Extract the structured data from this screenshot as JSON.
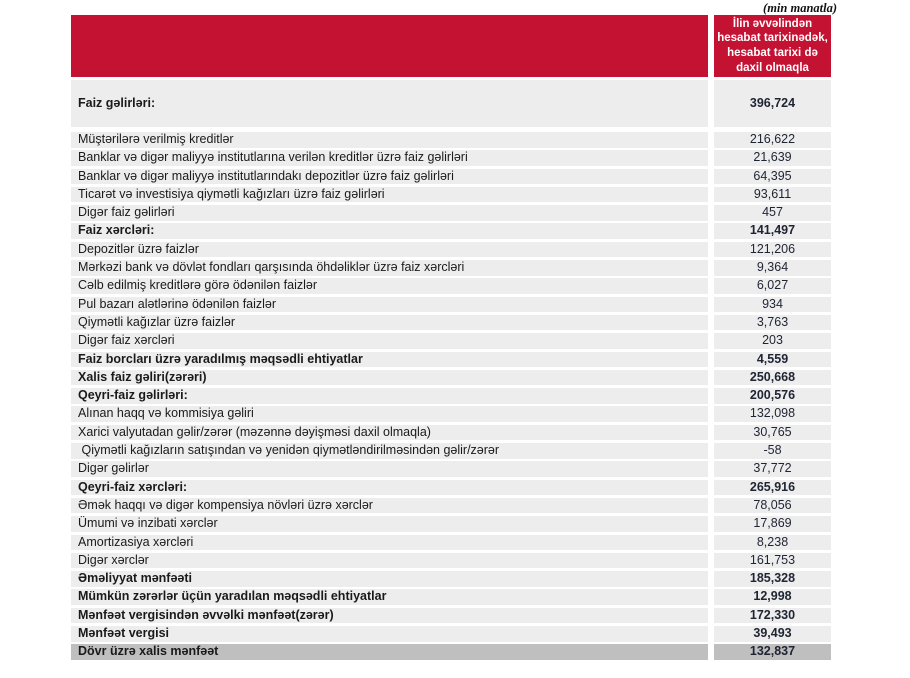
{
  "units_note": "(min manatla)",
  "table": {
    "value_column_header": "İlin əvvəlindən hesabat tarixinədək, hesabat tarixi də daxil olmaqla",
    "colors": {
      "header_red": "#C41233",
      "header_text": "#FFFFFF",
      "row_gray": "#EDEDED",
      "total_row_gray": "#BFBFBF"
    },
    "rows": [
      {
        "label": "Faiz gəlirləri:",
        "value": "396,724",
        "style": "bold tall"
      },
      {
        "label": "Müştərilərə verilmiş kreditlər",
        "value": "216,622",
        "style": ""
      },
      {
        "label": "Banklar və digər maliyyə institutlarına verilən kreditlər üzrə faiz gəlirləri",
        "value": "21,639",
        "style": ""
      },
      {
        "label": "Banklar və digər maliyyə institutlarındakı depozitlər üzrə faiz gəlirləri",
        "value": "64,395",
        "style": ""
      },
      {
        "label": "Ticarət və investisiya qiymətli kağızları üzrə faiz gəlirləri",
        "value": "93,611",
        "style": ""
      },
      {
        "label": "Digər faiz gəlirləri",
        "value": "457",
        "style": ""
      },
      {
        "label": "Faiz xərcləri:",
        "value": "141,497",
        "style": "bold"
      },
      {
        "label": "Depozitlər üzrə faizlər",
        "value": "121,206",
        "style": ""
      },
      {
        "label": "Mərkəzi bank və dövlət fondları qarşısında öhdəliklər üzrə faiz xərcləri",
        "value": "9,364",
        "style": ""
      },
      {
        "label": "Cəlb edilmiş kreditlərə görə ödənilən faizlər",
        "value": "6,027",
        "style": ""
      },
      {
        "label": "Pul bazarı alətlərinə ödənilən faizlər",
        "value": "934",
        "style": ""
      },
      {
        "label": "Qiymətli kağızlar üzrə faizlər",
        "value": "3,763",
        "style": ""
      },
      {
        "label": "Digər faiz xərcləri",
        "value": "203",
        "style": ""
      },
      {
        "label": "Faiz borcları üzrə yaradılmış məqsədli ehtiyatlar",
        "value": "4,559",
        "style": "bold"
      },
      {
        "label": "Xalis faiz gəliri(zərəri)",
        "value": "250,668",
        "style": "bold"
      },
      {
        "label": "Qeyri-faiz gəlirləri:",
        "value": "200,576",
        "style": "bold"
      },
      {
        "label": "Alınan haqq və kommisiya gəliri",
        "value": "132,098",
        "style": ""
      },
      {
        "label": "Xarici valyutadan gəlir/zərər (məzənnə dəyişməsi daxil olmaqla)",
        "value": "30,765",
        "style": ""
      },
      {
        "label": " Qiymətli kağızların satışından və yenidən qiymətləndirilməsindən gəlir/zərər",
        "value": "-58",
        "style": ""
      },
      {
        "label": "Digər gəlirlər",
        "value": "37,772",
        "style": ""
      },
      {
        "label": "Qeyri-faiz xərcləri:",
        "value": "265,916",
        "style": "bold"
      },
      {
        "label": "Əmək haqqı və digər kompensiya növləri üzrə xərclər",
        "value": "78,056",
        "style": ""
      },
      {
        "label": "Ümumi və inzibati xərclər",
        "value": "17,869",
        "style": ""
      },
      {
        "label": "Amortizasiya xərcləri",
        "value": "8,238",
        "style": ""
      },
      {
        "label": "Digər xərclər",
        "value": "161,753",
        "style": ""
      },
      {
        "label": "Əməliyyat mənfəəti",
        "value": "185,328",
        "style": "bold"
      },
      {
        "label": "Mümkün zərərlər üçün yaradılan məqsədli ehtiyatlar",
        "value": "12,998",
        "style": "bold"
      },
      {
        "label": "Mənfəət vergisindən əvvəlki mənfəət(zərər)",
        "value": "172,330",
        "style": "bold"
      },
      {
        "label": "Mənfəət vergisi",
        "value": "39,493",
        "style": "bold"
      },
      {
        "label": "Dövr üzrə xalis mənfəət",
        "value": "132,837",
        "style": "bold dark"
      }
    ]
  }
}
